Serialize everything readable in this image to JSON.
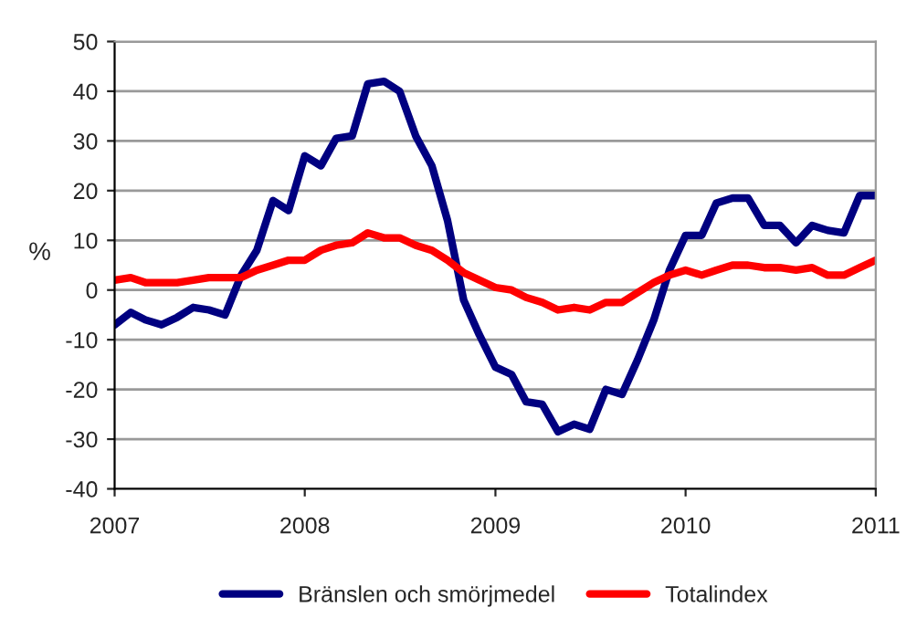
{
  "chart_data": {
    "type": "line",
    "ylabel": "%",
    "x": [
      "2007-01",
      "2007-02",
      "2007-03",
      "2007-04",
      "2007-05",
      "2007-06",
      "2007-07",
      "2007-08",
      "2007-09",
      "2007-10",
      "2007-11",
      "2007-12",
      "2008-01",
      "2008-02",
      "2008-03",
      "2008-04",
      "2008-05",
      "2008-06",
      "2008-07",
      "2008-08",
      "2008-09",
      "2008-10",
      "2008-11",
      "2008-12",
      "2009-01",
      "2009-02",
      "2009-03",
      "2009-04",
      "2009-05",
      "2009-06",
      "2009-07",
      "2009-08",
      "2009-09",
      "2009-10",
      "2009-11",
      "2009-12",
      "2010-01",
      "2010-02",
      "2010-03",
      "2010-04",
      "2010-05",
      "2010-06",
      "2010-07",
      "2010-08",
      "2010-09",
      "2010-10",
      "2010-11",
      "2010-12",
      "2011-01"
    ],
    "series": [
      {
        "name": "Bränslen och smörjmedel",
        "color": "#000080",
        "values": [
          -7,
          -4.5,
          -6,
          -7,
          -5.5,
          -3.5,
          -4,
          -5,
          3,
          8,
          18,
          16,
          27,
          25,
          30.5,
          31,
          41.5,
          42,
          40,
          31,
          25,
          14,
          -2,
          -9,
          -15.5,
          -17,
          -22.5,
          -23,
          -28.5,
          -27,
          -28,
          -20,
          -21,
          -14,
          -6,
          4,
          11,
          11,
          17.5,
          18.5,
          18.5,
          13,
          13,
          9.5,
          13,
          12,
          11.5,
          19,
          19
        ]
      },
      {
        "name": "Totalindex",
        "color": "#ff0000",
        "values": [
          2,
          2.5,
          1.5,
          1.5,
          1.5,
          2,
          2.5,
          2.5,
          2.5,
          4,
          5,
          6,
          6,
          8,
          9,
          9.5,
          11.5,
          10.5,
          10.5,
          9,
          8,
          6,
          3.5,
          2,
          0.5,
          0,
          -1.5,
          -2.5,
          -4,
          -3.5,
          -4,
          -2.5,
          -2.5,
          -0.5,
          1.5,
          3,
          4,
          3,
          4,
          5,
          5,
          4.5,
          4.5,
          4,
          4.5,
          3,
          3,
          4.5,
          6
        ]
      }
    ],
    "xlim": [
      "2007-01",
      "2011-01"
    ],
    "xticks": [
      {
        "value": "2007-01",
        "label": "2007"
      },
      {
        "value": "2008-01",
        "label": "2008"
      },
      {
        "value": "2009-01",
        "label": "2009"
      },
      {
        "value": "2010-01",
        "label": "2010"
      },
      {
        "value": "2011-01",
        "label": "2011"
      }
    ],
    "ylim": [
      -40,
      50
    ],
    "yticks": [
      -40,
      -30,
      -20,
      -10,
      0,
      10,
      20,
      30,
      40,
      50
    ],
    "grid": "y",
    "legend": "bottom",
    "marker": "none",
    "line_style": "solid"
  }
}
